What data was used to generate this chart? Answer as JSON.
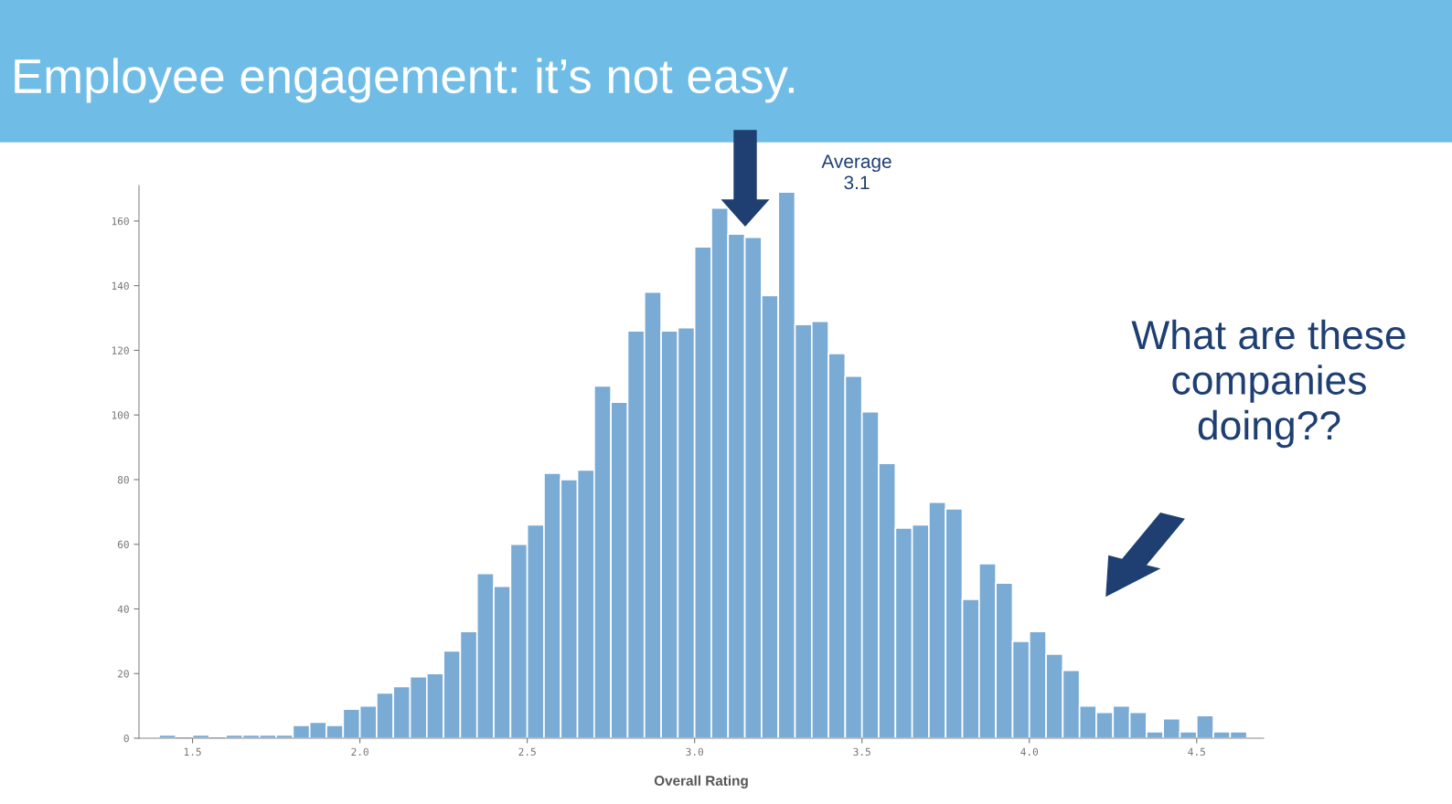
{
  "chart_data": {
    "type": "histogram",
    "title": "Employee engagement: it’s not easy.",
    "xlabel": "Overall Rating",
    "annotations": [
      "Average\n3.1",
      "What are these\ncompanies\ndoing??"
    ],
    "bins": [
      1.4,
      1.45,
      1.5,
      1.55,
      1.6,
      1.65,
      1.7,
      1.75,
      1.8,
      1.85,
      1.9,
      1.95,
      2.0,
      2.05,
      2.1,
      2.15,
      2.2,
      2.25,
      2.3,
      2.35,
      2.4,
      2.45,
      2.5,
      2.55,
      2.6,
      2.65,
      2.7,
      2.75,
      2.8,
      2.85,
      2.9,
      2.95,
      3.0,
      3.05,
      3.1,
      3.15,
      3.2,
      3.25,
      3.3,
      3.35,
      3.4,
      3.45,
      3.5,
      3.55,
      3.6,
      3.65,
      3.7,
      3.75,
      3.8,
      3.85,
      3.9,
      3.95,
      4.0,
      4.05,
      4.1,
      4.15,
      4.2,
      4.25,
      4.3,
      4.35,
      4.4,
      4.45,
      4.5,
      4.55,
      4.6,
      4.65
    ],
    "values": [
      1,
      0,
      1,
      0,
      1,
      1,
      1,
      1,
      4,
      5,
      4,
      9,
      10,
      14,
      16,
      19,
      20,
      27,
      33,
      51,
      47,
      60,
      66,
      82,
      80,
      83,
      109,
      104,
      126,
      138,
      126,
      127,
      152,
      164,
      156,
      155,
      137,
      169,
      128,
      129,
      119,
      112,
      101,
      85,
      65,
      66,
      73,
      71,
      43,
      54,
      48,
      30,
      33,
      26,
      21,
      10,
      8,
      10,
      8,
      2,
      6,
      2,
      7,
      2,
      2
    ],
    "color": "#7aabd4",
    "xlim": [
      1.34,
      4.7
    ],
    "xticks": [
      {
        "value": 1.5,
        "label": "1.5"
      },
      {
        "value": 2,
        "label": "2.0"
      },
      {
        "value": 2.5,
        "label": "2.5"
      },
      {
        "value": 3,
        "label": "3.0"
      },
      {
        "value": 3.5,
        "label": "3.5"
      },
      {
        "value": 4,
        "label": "4.0"
      },
      {
        "value": 4.5,
        "label": "4.5"
      }
    ],
    "ylim": [
      0,
      171
    ],
    "yticks": [
      0,
      20,
      40,
      60,
      80,
      100,
      120,
      140,
      160
    ],
    "grid": false,
    "legend": false
  }
}
